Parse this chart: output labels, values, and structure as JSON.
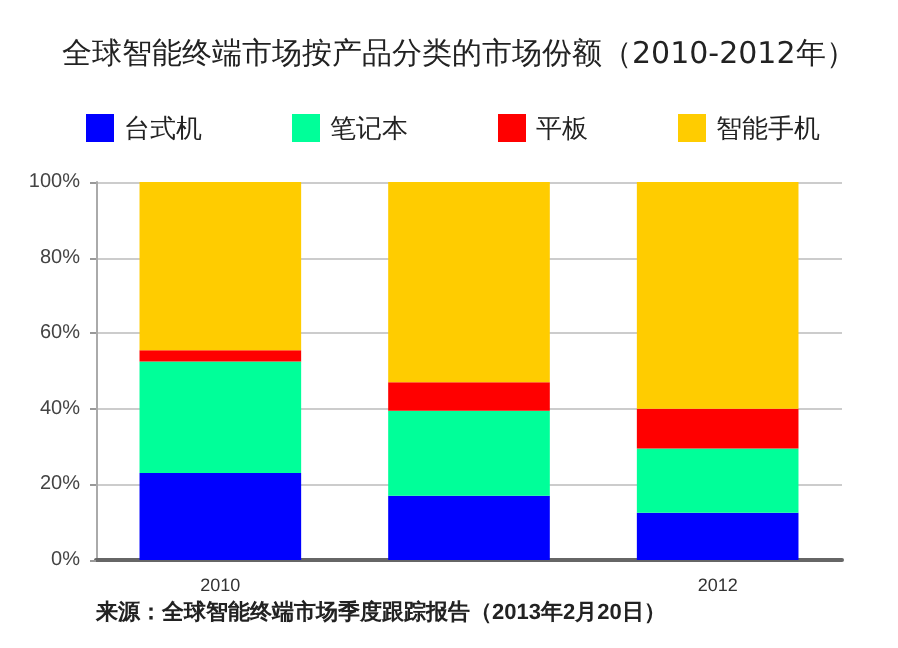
{
  "chart_data": {
    "type": "bar",
    "stacked": true,
    "title": "全球智能终端市场按产品分类的市场份额（2010-2012年）",
    "categories": [
      "2010",
      null,
      "2012"
    ],
    "series": [
      {
        "name": "台式机",
        "color": "#0000ff",
        "values": [
          23,
          17,
          12.5
        ]
      },
      {
        "name": "笔记本",
        "color": "#00ff99",
        "values": [
          29.5,
          22.5,
          17
        ]
      },
      {
        "name": "平板",
        "color": "#ff0000",
        "values": [
          3,
          7.5,
          10.5
        ]
      },
      {
        "name": "智能手机",
        "color": "#ffcc00",
        "values": [
          44.5,
          53,
          60
        ]
      }
    ],
    "ylim": [
      0,
      100
    ],
    "yticks": [
      {
        "value": 0,
        "label": "0%"
      },
      {
        "value": 20,
        "label": "20%"
      },
      {
        "value": 40,
        "label": "40%"
      },
      {
        "value": 60,
        "label": "60%"
      },
      {
        "value": 80,
        "label": "80%"
      },
      {
        "value": 100,
        "label": "100%"
      }
    ],
    "grid": "y",
    "legend": "top left",
    "annotations": [
      "来源：全球智能终端市场季度跟踪报告（2013年2月20日）"
    ]
  }
}
